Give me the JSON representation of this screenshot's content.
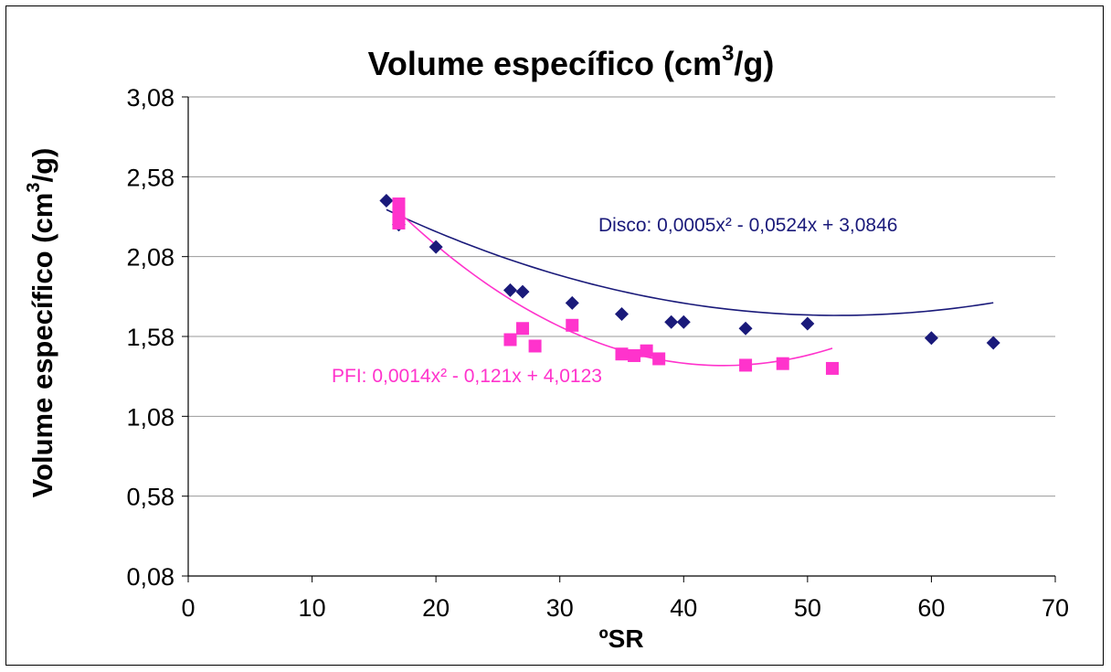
{
  "chart_data": {
    "type": "scatter",
    "title": "Volume específico (cm",
    "title_sup": "3",
    "title_end": "/g)",
    "xlabel": "ºSR",
    "ylabel": "Volume específico (cm",
    "ylabel_sup": "3",
    "ylabel_end": "/g)",
    "xlim": [
      0,
      70
    ],
    "ylim": [
      0.08,
      3.08
    ],
    "x_ticks": [
      "0",
      "10",
      "20",
      "30",
      "40",
      "50",
      "60",
      "70"
    ],
    "y_ticks": [
      "0,08",
      "0,58",
      "1,08",
      "1,58",
      "2,08",
      "2,58",
      "3,08"
    ],
    "grid": "horizontal",
    "series": [
      {
        "color": "#1a1a7a",
        "marker": "diamond",
        "x": [
          16,
          17,
          20,
          26,
          27,
          31,
          35,
          39,
          40,
          45,
          50,
          60,
          65
        ],
        "y": [
          2.43,
          2.28,
          2.14,
          1.87,
          1.86,
          1.79,
          1.72,
          1.67,
          1.67,
          1.63,
          1.66,
          1.57,
          1.54
        ],
        "trendline": {
          "a": 0.0005,
          "b": -0.0524,
          "c": 3.0846,
          "x_range": [
            16,
            65
          ]
        },
        "equation": "Disco: 0,0005x² - 0,0524x + 3,0846"
      },
      {
        "color": "#ff33cc",
        "marker": "square",
        "x": [
          17,
          17,
          17,
          26,
          27,
          28,
          31,
          35,
          36,
          37,
          38,
          45,
          48,
          52
        ],
        "y": [
          2.41,
          2.35,
          2.29,
          1.56,
          1.63,
          1.52,
          1.65,
          1.47,
          1.46,
          1.49,
          1.44,
          1.4,
          1.41,
          1.38
        ],
        "trendline": {
          "a": 0.0014,
          "b": -0.121,
          "c": 4.0123,
          "x_range": [
            17,
            52
          ]
        },
        "equation": "PFI: 0,0014x² - 0,121x + 4,0123"
      }
    ]
  }
}
